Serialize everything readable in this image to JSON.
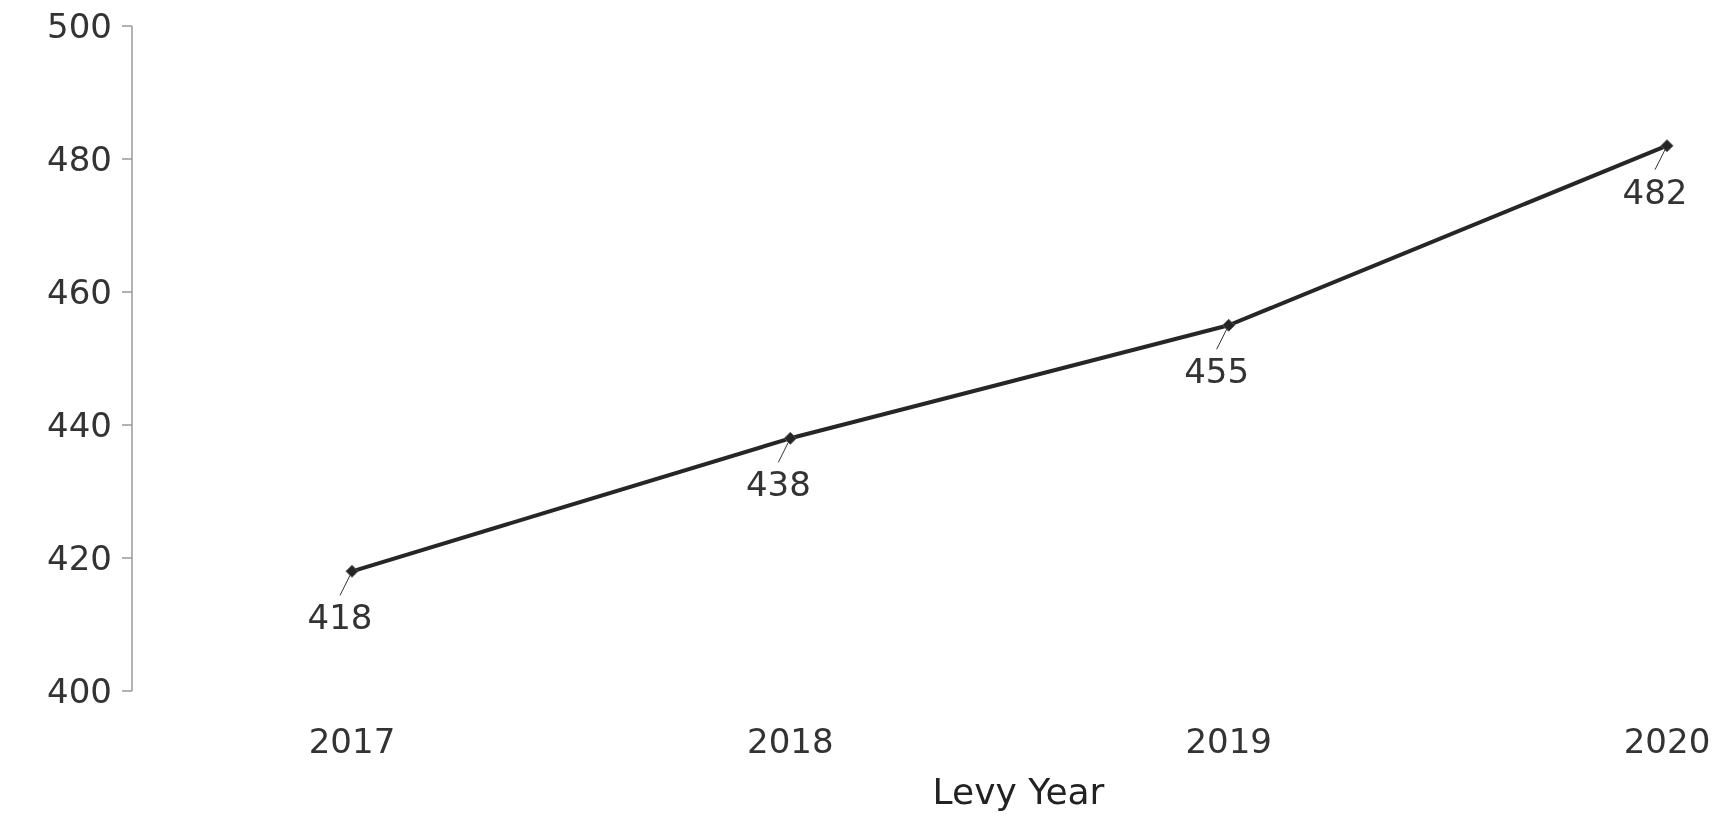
{
  "chart_data": {
    "type": "line",
    "xlabel": "Levy Year",
    "categories": [
      "2017",
      "2018",
      "2019",
      "2020"
    ],
    "series": [
      {
        "color": "#262626",
        "values": [
          418,
          438,
          455,
          482
        ]
      }
    ],
    "ylim": [
      400,
      500
    ],
    "yticks": [
      400,
      420,
      440,
      460,
      480,
      500
    ],
    "marker": "diamond",
    "line_style": "solid",
    "data_labels": true
  }
}
